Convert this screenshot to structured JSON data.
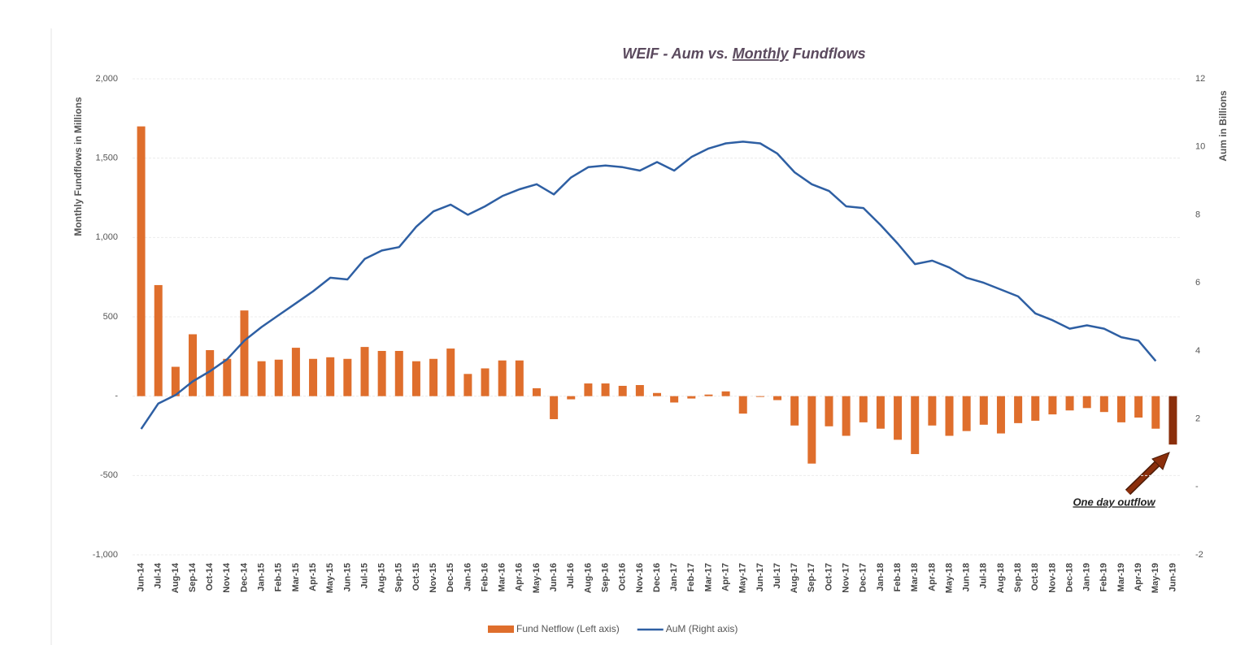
{
  "chart_data": {
    "type": "bar+line",
    "title": "WEIF - Aum vs. Monthly Fundflows",
    "title_underline": "Monthly",
    "y_label": "Monthly Fundflows in Millions",
    "y2_label": "Aum in Billions",
    "annotation": "One day outflow",
    "categories": [
      "Jun-14",
      "Jul-14",
      "Aug-14",
      "Sep-14",
      "Oct-14",
      "Nov-14",
      "Dec-14",
      "Jan-15",
      "Feb-15",
      "Mar-15",
      "Apr-15",
      "May-15",
      "Jun-15",
      "Jul-15",
      "Aug-15",
      "Sep-15",
      "Oct-15",
      "Nov-15",
      "Dec-15",
      "Jan-16",
      "Feb-16",
      "Mar-16",
      "Apr-16",
      "May-16",
      "Jun-16",
      "Jul-16",
      "Aug-16",
      "Sep-16",
      "Oct-16",
      "Nov-16",
      "Dec-16",
      "Jan-17",
      "Feb-17",
      "Mar-17",
      "Apr-17",
      "May-17",
      "Jun-17",
      "Jul-17",
      "Aug-17",
      "Sep-17",
      "Oct-17",
      "Nov-17",
      "Dec-17",
      "Jan-18",
      "Feb-18",
      "Mar-18",
      "Apr-18",
      "May-18",
      "Jun-18",
      "Jul-18",
      "Aug-18",
      "Sep-18",
      "Oct-18",
      "Nov-18",
      "Dec-18",
      "Jan-19",
      "Feb-19",
      "Mar-19",
      "Apr-19",
      "May-19",
      "Jun-19"
    ],
    "series": [
      {
        "name": "Fund Netflow (Left axis)",
        "type": "bar",
        "color": "#df6e2c",
        "values": [
          1700,
          700,
          185,
          390,
          290,
          235,
          540,
          220,
          230,
          305,
          235,
          245,
          235,
          310,
          285,
          285,
          220,
          235,
          300,
          140,
          175,
          225,
          225,
          50,
          -145,
          -20,
          80,
          80,
          65,
          70,
          20,
          -40,
          -15,
          10,
          30,
          -110,
          -5,
          -25,
          -185,
          -425,
          -190,
          -250,
          -165,
          -205,
          -275,
          -365,
          -185,
          -250,
          -220,
          -180,
          -235,
          -170,
          -155,
          -115,
          -90,
          -75,
          -100,
          -165,
          -135,
          -205,
          -305
        ],
        "colors": [
          "#df6e2c",
          "#df6e2c",
          "#df6e2c",
          "#df6e2c",
          "#df6e2c",
          "#df6e2c",
          "#df6e2c",
          "#df6e2c",
          "#df6e2c",
          "#df6e2c",
          "#df6e2c",
          "#df6e2c",
          "#df6e2c",
          "#df6e2c",
          "#df6e2c",
          "#df6e2c",
          "#df6e2c",
          "#df6e2c",
          "#df6e2c",
          "#df6e2c",
          "#df6e2c",
          "#df6e2c",
          "#df6e2c",
          "#df6e2c",
          "#df6e2c",
          "#df6e2c",
          "#df6e2c",
          "#df6e2c",
          "#df6e2c",
          "#df6e2c",
          "#df6e2c",
          "#df6e2c",
          "#df6e2c",
          "#df6e2c",
          "#df6e2c",
          "#df6e2c",
          "#df6e2c",
          "#df6e2c",
          "#df6e2c",
          "#df6e2c",
          "#df6e2c",
          "#df6e2c",
          "#df6e2c",
          "#df6e2c",
          "#df6e2c",
          "#df6e2c",
          "#df6e2c",
          "#df6e2c",
          "#df6e2c",
          "#df6e2c",
          "#df6e2c",
          "#df6e2c",
          "#df6e2c",
          "#df6e2c",
          "#df6e2c",
          "#df6e2c",
          "#df6e2c",
          "#df6e2c",
          "#df6e2c",
          "#df6e2c",
          "#8b2f0c"
        ]
      },
      {
        "name": "AuM (Right axis)",
        "type": "line",
        "axis": "y2",
        "color": "#2e5fa3",
        "values": [
          1.7,
          2.45,
          2.7,
          3.1,
          3.4,
          3.75,
          4.3,
          4.7,
          5.05,
          5.4,
          5.75,
          6.15,
          6.1,
          6.7,
          6.95,
          7.05,
          7.65,
          8.1,
          8.3,
          8.0,
          8.25,
          8.55,
          8.75,
          8.9,
          8.6,
          9.1,
          9.4,
          9.45,
          9.4,
          9.3,
          9.55,
          9.3,
          9.7,
          9.95,
          10.1,
          10.15,
          10.1,
          9.8,
          9.25,
          8.9,
          8.7,
          8.25,
          8.2,
          7.7,
          7.15,
          6.55,
          6.65,
          6.45,
          6.15,
          6.0,
          5.8,
          5.6,
          5.1,
          4.9,
          4.65,
          4.75,
          4.65,
          4.4,
          4.3,
          3.7,
          null
        ]
      }
    ],
    "ylim": [
      -1000,
      2000
    ],
    "yticks": [
      {
        "value": -1000,
        "label": "-1,000"
      },
      -500,
      {
        "value": 0,
        "label": "-"
      },
      500,
      {
        "value": 1000,
        "label": "1,000"
      },
      {
        "value": 1500,
        "label": "1,500"
      },
      {
        "value": 2000,
        "label": "2,000"
      }
    ],
    "y2lim": [
      -2,
      12
    ],
    "y2ticks": [
      -2,
      {
        "value": 0,
        "label": "-"
      },
      2,
      4,
      6,
      8,
      10,
      12
    ],
    "grid": true,
    "legend": "bottom"
  }
}
